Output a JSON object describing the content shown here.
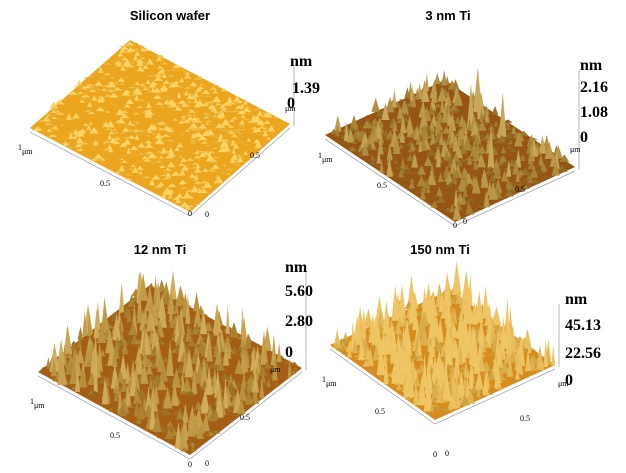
{
  "panels": [
    {
      "title": "Silicon wafer",
      "z_unit": "nm",
      "z_ticks": [
        "1.39",
        "0"
      ],
      "x_labels": [
        "1",
        "μm",
        "0.5",
        "0"
      ],
      "y_labels": [
        "μm",
        "0.5",
        "0"
      ]
    },
    {
      "title": "3 nm Ti",
      "z_unit": "nm",
      "z_ticks": [
        "2.16",
        "1.08",
        "0"
      ],
      "x_labels": [
        "1",
        "μm",
        "0.5",
        "0"
      ],
      "y_labels": [
        "μm",
        "0.5",
        "0"
      ]
    },
    {
      "title": "12 nm Ti",
      "z_unit": "nm",
      "z_ticks": [
        "5.60",
        "2.80",
        "0"
      ],
      "x_labels": [
        "1",
        "μm",
        "0.5",
        "0"
      ],
      "y_labels": [
        "μm",
        "0.5",
        "0"
      ]
    },
    {
      "title": "150 nm Ti",
      "z_unit": "nm",
      "z_ticks": [
        "45.13",
        "22.56",
        "0"
      ],
      "x_labels": [
        "1",
        "μm",
        "0.5",
        "0"
      ],
      "y_labels": [
        "μm",
        "0.5",
        "0"
      ]
    }
  ]
}
